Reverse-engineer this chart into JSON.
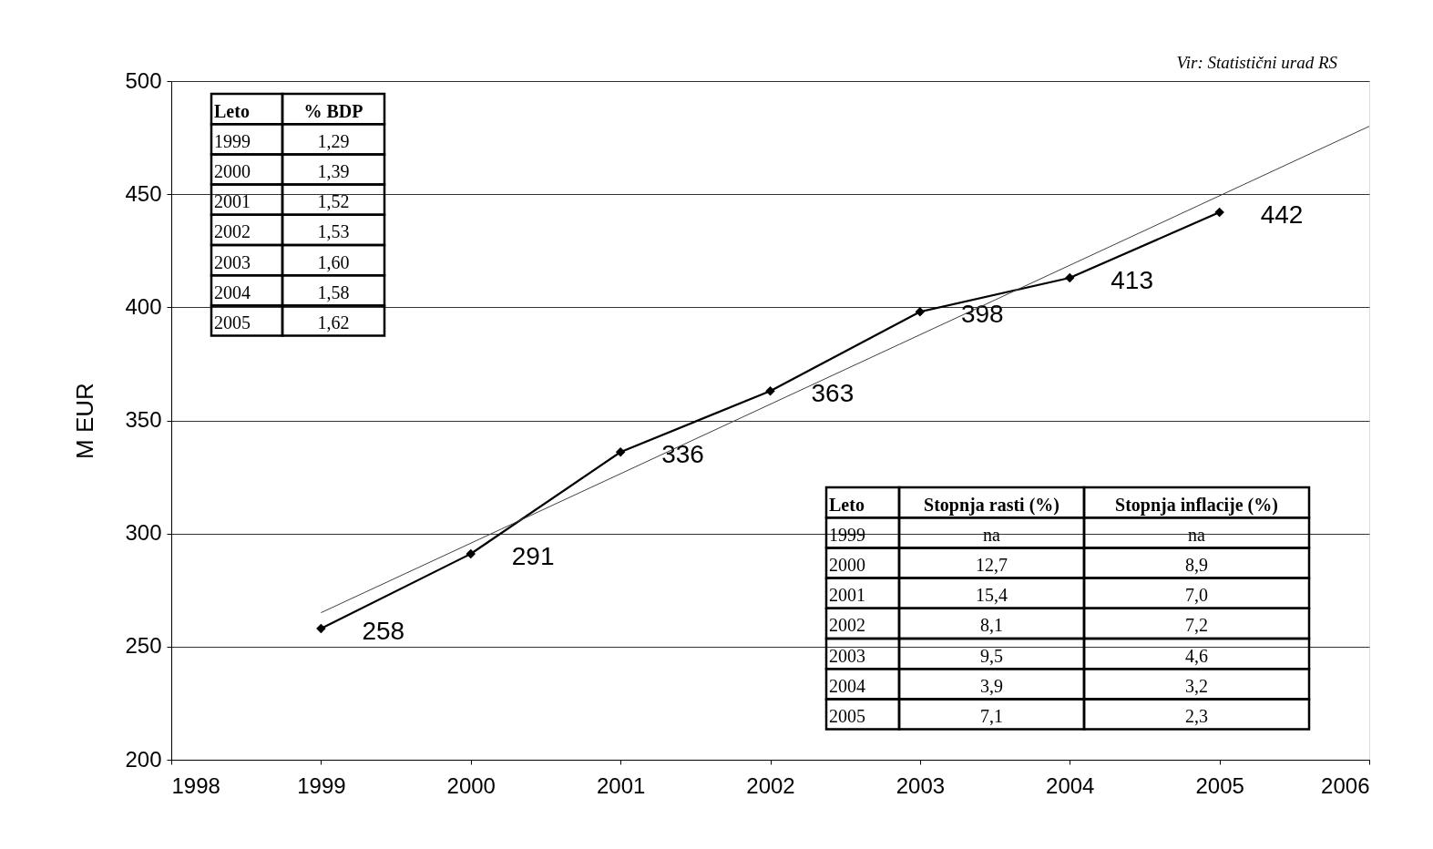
{
  "chart_data": {
    "type": "line",
    "ylabel": "M EUR",
    "xlim": [
      1998,
      2006
    ],
    "xticks": [
      1998,
      1999,
      2000,
      2001,
      2002,
      2003,
      2004,
      2005,
      2006
    ],
    "ylim": [
      200,
      500
    ],
    "yticks": [
      200,
      250,
      300,
      350,
      400,
      450,
      500
    ],
    "grid": "y",
    "marker": "diamond",
    "line_style": "solid",
    "x": [
      1999,
      2000,
      2001,
      2002,
      2003,
      2004,
      2005
    ],
    "series": [
      {
        "color": "#000000",
        "values": [
          258,
          291,
          336,
          363,
          398,
          413,
          442
        ],
        "value_labels": [
          "258",
          "291",
          "336",
          "363",
          "398",
          "413",
          "442"
        ]
      },
      {
        "type": "line",
        "color": "#404040",
        "marker": "none",
        "x": [
          1999,
          2006
        ],
        "values": [
          265,
          480
        ]
      }
    ],
    "annotations": [
      "Vir: Statistični urad RS",
      "Leto",
      "% BDP",
      "1999",
      "1,29",
      "2000",
      "1,39",
      "2001",
      "1,52",
      "2002",
      "1,53",
      "2003",
      "1,60",
      "2004",
      "1,58",
      "2005",
      "1,62",
      "Leto",
      "Stopnja rasti (%)",
      "Stopnja inflacije (%)",
      "1999",
      "na",
      "na",
      "2000",
      "12,7",
      "8,9",
      "2001",
      "15,4",
      "7,0",
      "2002",
      "8,1",
      "7,2",
      "2003",
      "9,5",
      "4,6",
      "2004",
      "3,9",
      "3,2",
      "2005",
      "7,1",
      "2,3"
    ]
  }
}
